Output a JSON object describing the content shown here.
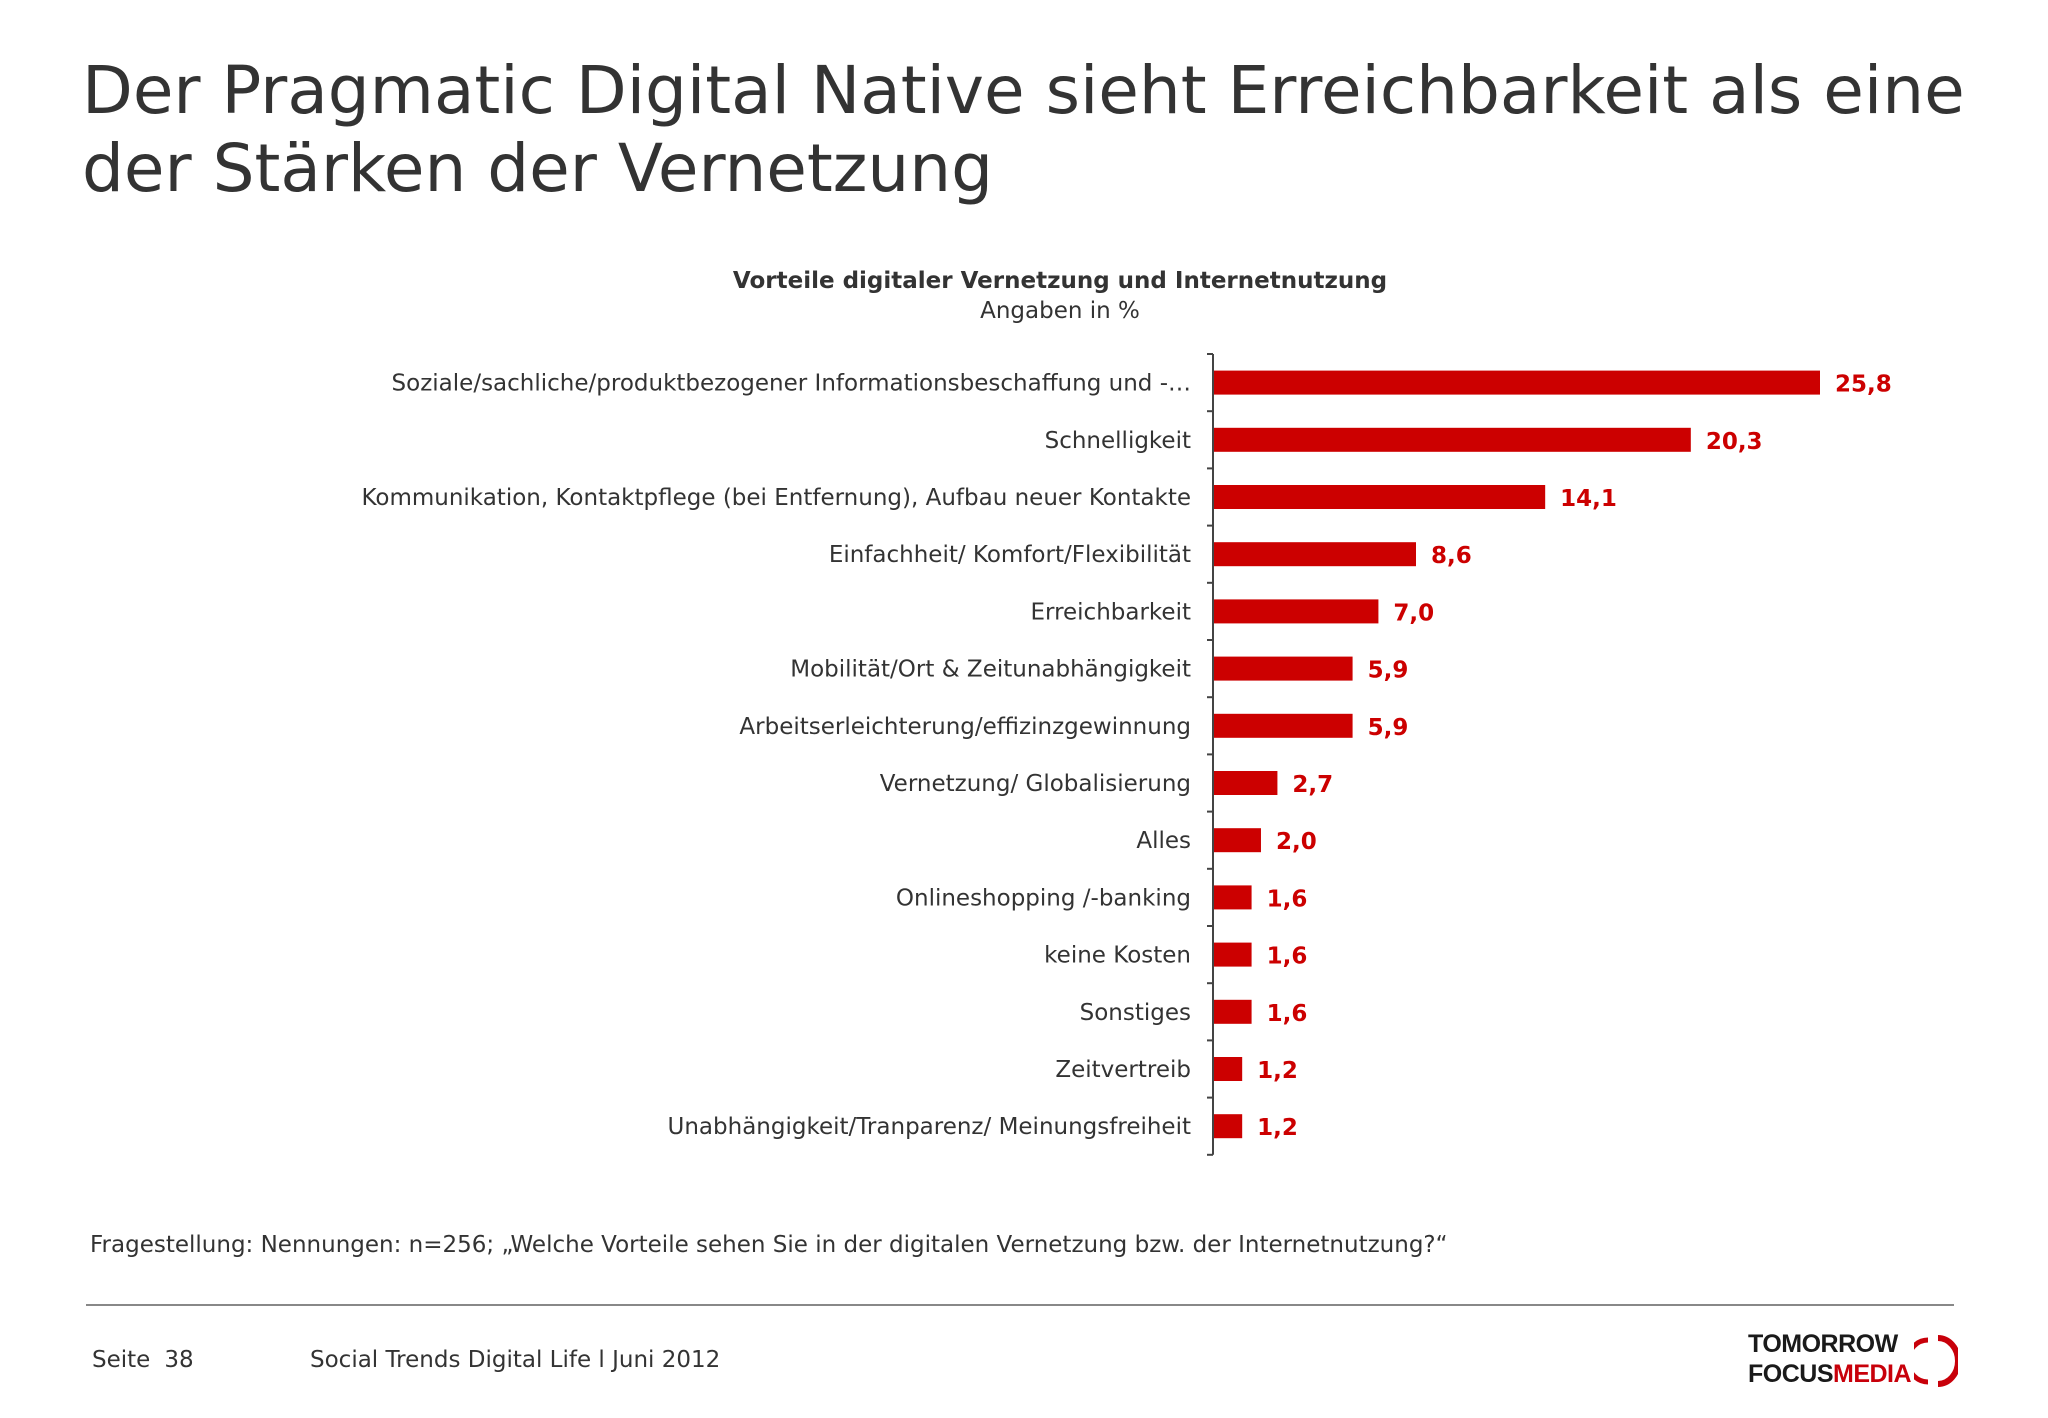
{
  "slide": {
    "title": "Der Pragmatic Digital Native sieht Erreichbarkeit als eine der Stärken der Vernetzung"
  },
  "chart_data": {
    "type": "bar",
    "orientation": "horizontal",
    "title": "Vorteile digitaler Vernetzung und Internetnutzung",
    "subtitle": "Angaben in %",
    "categories": [
      "Soziale/sachliche/produktbezogener Informationsbeschaffung und -…",
      "Schnelligkeit",
      "Kommunikation, Kontaktpflege (bei Entfernung), Aufbau neuer Kontakte",
      "Einfachheit/ Komfort/Flexibilität",
      "Erreichbarkeit",
      "Mobilität/Ort & Zeitunabhängigkeit",
      "Arbeitserleichterung/effizinzgewinnung",
      "Vernetzung/ Globalisierung",
      "Alles",
      "Onlineshopping /-banking",
      "keine Kosten",
      "Sonstiges",
      "Zeitvertreib",
      "Unabhängigkeit/Tranparenz/ Meinungsfreiheit"
    ],
    "values": [
      25.8,
      20.3,
      14.1,
      8.6,
      7.0,
      5.9,
      5.9,
      2.7,
      2.0,
      1.6,
      1.6,
      1.6,
      1.2,
      1.2
    ],
    "data_labels": [
      "25,8",
      "20,3",
      "14,1",
      "8,6",
      "7,0",
      "5,9",
      "5,9",
      "2,7",
      "2,0",
      "1,6",
      "1,6",
      "1,6",
      "1,2",
      "1,2"
    ],
    "xlim": [
      0,
      25.8
    ],
    "grid": false,
    "legend": "none",
    "bar_color": "#cc0000"
  },
  "footer": {
    "question": "Fragestellung: Nennungen: n=256; „Welche Vorteile sehen Sie in der digitalen Vernetzung bzw. der Internetnutzung?“",
    "page_label": "Seite",
    "page_number": "38",
    "source": "Social Trends Digital Life l Juni 2012"
  },
  "logo": {
    "line1": "TOMORROW",
    "line2a": "FOCUS",
    "line2b": "MEDIA",
    "icon": "focus-ring-logo-icon"
  }
}
